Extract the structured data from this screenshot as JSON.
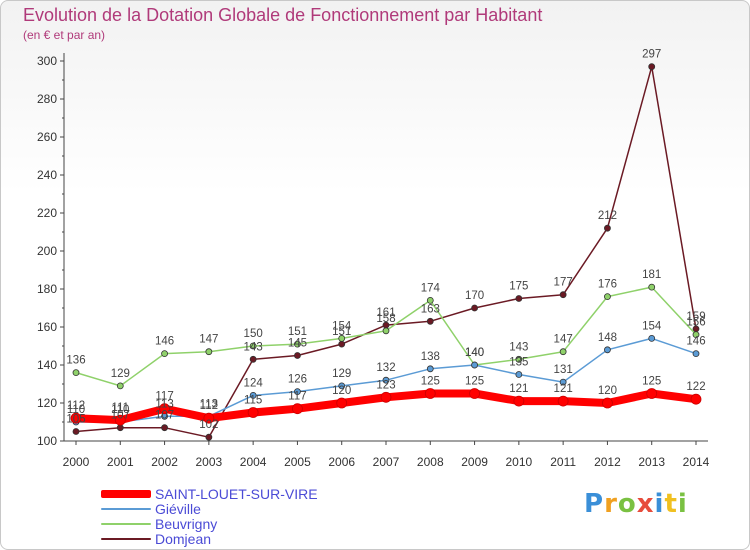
{
  "header": {
    "title": "Evolution de la Dotation Globale de Fonctionnement par Habitant",
    "subtitle": "(en € et par an)"
  },
  "logo": {
    "text": "Proxiti",
    "letters": [
      "P",
      "r",
      "o",
      "x",
      "i",
      "t",
      "i"
    ]
  },
  "chart_data": {
    "type": "line",
    "title": "Evolution de la Dotation Globale de Fonctionnement par Habitant",
    "ylabel": "(en € et par an)",
    "xlabel": "",
    "x": [
      "2000",
      "2001",
      "2002",
      "2003",
      "2004",
      "2005",
      "2006",
      "2007",
      "2008",
      "2009",
      "2010",
      "2011",
      "2012",
      "2013",
      "2014"
    ],
    "ylim": [
      100,
      300
    ],
    "yticks": [
      100,
      120,
      140,
      160,
      180,
      200,
      220,
      240,
      260,
      280,
      300
    ],
    "grid": false,
    "legend_position": "bottom-left",
    "series": [
      {
        "name": "SAINT-LOUET-SUR-VIRE",
        "color": "#ff0000",
        "values": [
          112,
          111,
          117,
          112,
          115,
          117,
          120,
          123,
          125,
          125,
          121,
          121,
          120,
          125,
          122
        ]
      },
      {
        "name": "Giéville",
        "color": "#5b9bd5",
        "values": [
          110,
          110,
          113,
          113,
          124,
          126,
          129,
          132,
          138,
          140,
          135,
          131,
          148,
          154,
          146
        ]
      },
      {
        "name": "Beuvrigny",
        "color": "#8fd16a",
        "values": [
          136,
          129,
          146,
          147,
          150,
          151,
          154,
          158,
          174,
          140,
          143,
          147,
          176,
          181,
          156
        ]
      },
      {
        "name": "Domjean",
        "color": "#6b1a24",
        "values": [
          105,
          107,
          107,
          102,
          143,
          145,
          151,
          161,
          163,
          170,
          175,
          177,
          212,
          297,
          159
        ]
      }
    ]
  }
}
